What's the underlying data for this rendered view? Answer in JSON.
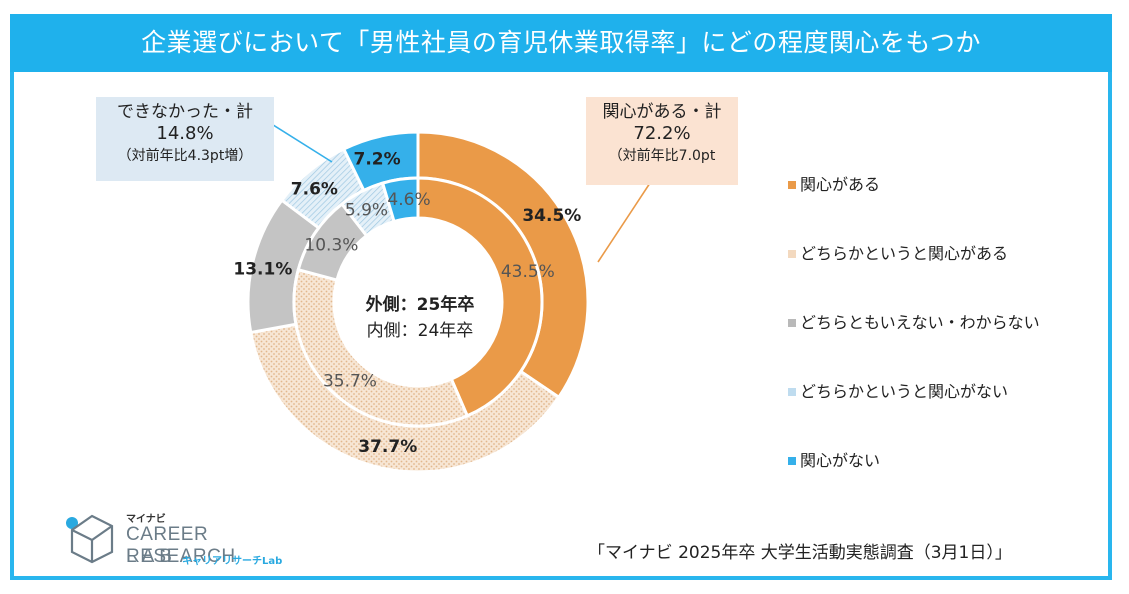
{
  "title": "企業選びにおいて「男性社員の育児休業取得率」にどの程度関心をもつか",
  "callout_left": {
    "label": "できなかった・計",
    "value": "14.8%",
    "note": "（対前年比4.3pt増）"
  },
  "callout_right": {
    "label": "関心がある・計",
    "value": "72.2%",
    "note": "（対前年比7.0pt"
  },
  "center": {
    "outer": "外側：25年卒",
    "inner": "内側：24年卒"
  },
  "source": "「マイナビ 2025年卒 大学生活動実態調査（3月1日）」",
  "logo": {
    "line1": "マイナビ",
    "line2": "CAREER RESEARCH",
    "line3": "LAB",
    "line4": "キャリアリサーチLab"
  },
  "chart_data": {
    "type": "donut",
    "categories": [
      "関心がある",
      "どちらかというと関心がある",
      "どちらともいえない・わからない",
      "どちらかというと関心がない",
      "関心がない"
    ],
    "series": [
      {
        "name": "外側：25年卒",
        "ring": "outer",
        "values": [
          34.5,
          37.7,
          13.1,
          7.6,
          7.2
        ],
        "labels": [
          "34.5%",
          "37.7%",
          "13.1%",
          "7.6%",
          "7.2%"
        ]
      },
      {
        "name": "内側：24年卒",
        "ring": "inner",
        "values": [
          43.5,
          35.7,
          10.3,
          5.9,
          4.6
        ],
        "labels": [
          "43.5%",
          "35.7%",
          "10.3%",
          "5.9%",
          "4.6%"
        ]
      }
    ],
    "colors": [
      "#ea9a48",
      "#f3d9bf",
      "#c4c4c4",
      "#cfe4f2",
      "#35b0ea"
    ],
    "legend_position": "right"
  }
}
